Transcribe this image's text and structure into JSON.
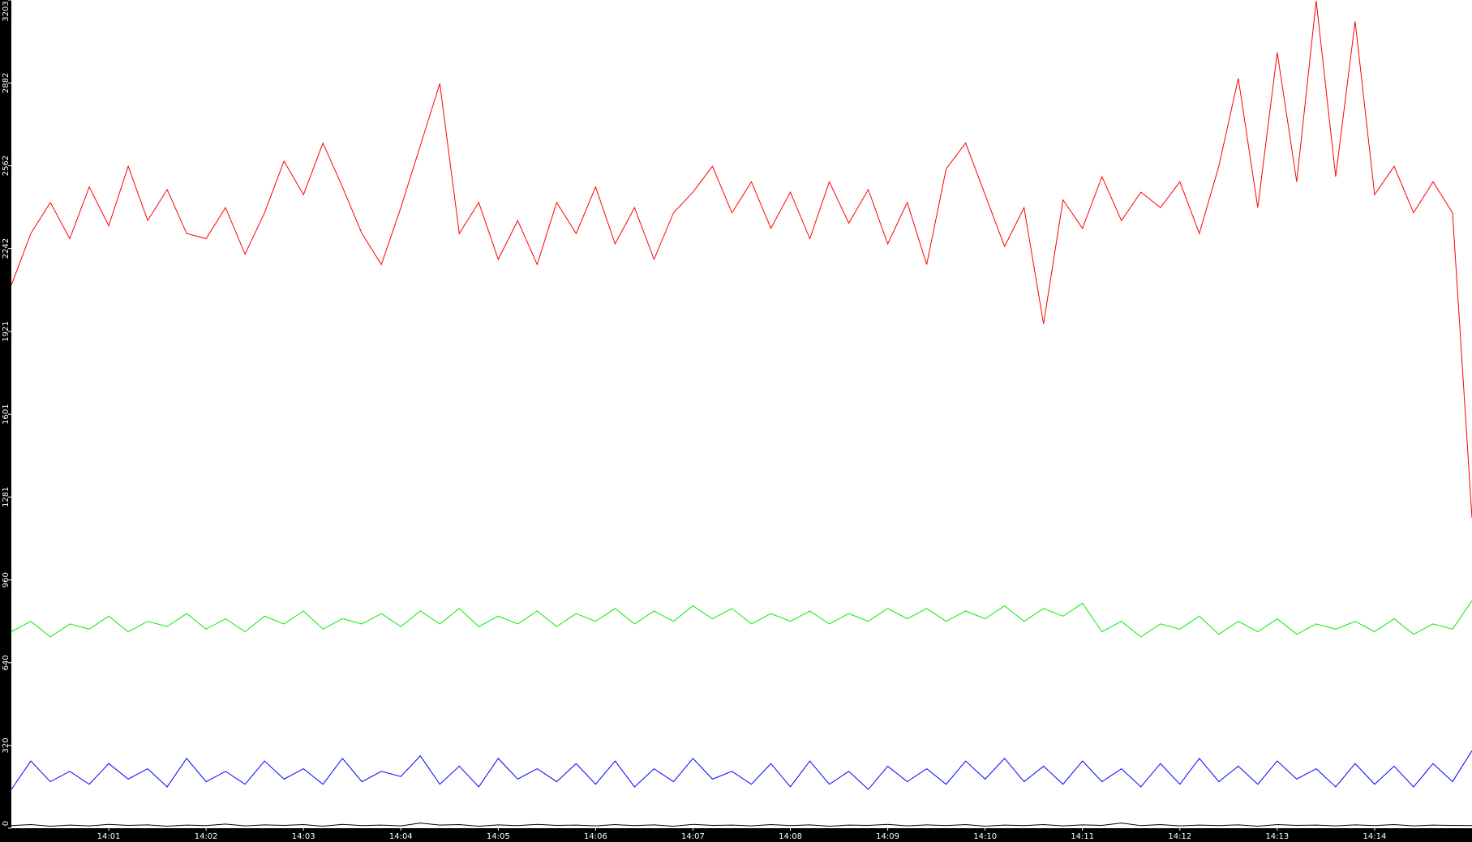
{
  "chart_data": {
    "type": "line",
    "x": [
      0,
      0.2,
      0.4,
      0.6,
      0.8,
      1,
      1.2,
      1.4,
      1.6,
      1.8,
      2,
      2.2,
      2.4,
      2.6,
      2.8,
      3,
      3.2,
      3.4,
      3.6,
      3.8,
      4,
      4.2,
      4.4,
      4.6,
      4.8,
      5,
      5.2,
      5.4,
      5.6,
      5.8,
      6,
      6.2,
      6.4,
      6.6,
      6.8,
      7,
      7.2,
      7.4,
      7.6,
      7.8,
      8,
      8.2,
      8.4,
      8.6,
      8.8,
      9,
      9.2,
      9.4,
      9.6,
      9.8,
      10,
      10.2,
      10.4,
      10.6,
      10.8,
      11,
      11.2,
      11.4,
      11.6,
      11.8,
      12,
      12.2,
      12.4,
      12.6,
      12.8,
      13,
      13.2,
      13.4,
      13.6,
      13.8,
      14,
      14.2,
      14.4,
      14.6,
      14.8,
      15
    ],
    "series": [
      {
        "color": "#ff0000",
        "values": [
          2100,
          2300,
          2420,
          2280,
          2480,
          2330,
          2560,
          2350,
          2470,
          2300,
          2280,
          2400,
          2220,
          2380,
          2580,
          2450,
          2650,
          2480,
          2300,
          2180,
          2400,
          2640,
          2880,
          2300,
          2420,
          2200,
          2350,
          2180,
          2420,
          2300,
          2480,
          2260,
          2400,
          2200,
          2380,
          2460,
          2560,
          2380,
          2500,
          2320,
          2460,
          2280,
          2500,
          2340,
          2470,
          2260,
          2420,
          2180,
          2550,
          2650,
          2450,
          2250,
          2400,
          1950,
          2430,
          2320,
          2520,
          2350,
          2460,
          2400,
          2500,
          2300,
          2560,
          2900,
          2400,
          3000,
          2500,
          3200,
          2520,
          3120,
          2450,
          2560,
          2380,
          2500,
          2380,
          1200
        ]
      },
      {
        "color": "#00ee00",
        "values": [
          760,
          800,
          740,
          790,
          770,
          820,
          760,
          800,
          780,
          830,
          770,
          810,
          760,
          820,
          790,
          840,
          770,
          810,
          790,
          830,
          780,
          840,
          790,
          850,
          780,
          820,
          790,
          840,
          780,
          830,
          800,
          850,
          790,
          840,
          800,
          860,
          810,
          850,
          790,
          830,
          800,
          840,
          790,
          830,
          800,
          850,
          810,
          850,
          800,
          840,
          810,
          860,
          800,
          850,
          820,
          870,
          760,
          800,
          740,
          790,
          770,
          820,
          750,
          800,
          760,
          810,
          750,
          790,
          770,
          800,
          760,
          810,
          750,
          790,
          770,
          880
        ]
      },
      {
        "color": "#0000ff",
        "values": [
          150,
          260,
          180,
          220,
          170,
          250,
          190,
          230,
          160,
          270,
          180,
          220,
          170,
          260,
          190,
          230,
          170,
          270,
          180,
          220,
          200,
          280,
          170,
          240,
          160,
          270,
          190,
          230,
          180,
          250,
          170,
          260,
          160,
          230,
          180,
          270,
          190,
          220,
          170,
          250,
          160,
          260,
          170,
          220,
          150,
          240,
          180,
          230,
          170,
          260,
          190,
          270,
          180,
          240,
          170,
          260,
          180,
          230,
          160,
          250,
          170,
          270,
          180,
          240,
          170,
          260,
          190,
          230,
          160,
          250,
          170,
          240,
          160,
          250,
          180,
          300
        ]
      },
      {
        "color": "#000000",
        "values": [
          10,
          14,
          8,
          12,
          9,
          15,
          11,
          13,
          8,
          12,
          10,
          16,
          9,
          13,
          11,
          14,
          8,
          15,
          10,
          12,
          9,
          20,
          12,
          14,
          8,
          13,
          10,
          15,
          11,
          12,
          9,
          14,
          10,
          13,
          8,
          15,
          11,
          12,
          9,
          14,
          10,
          13,
          8,
          12,
          11,
          15,
          9,
          13,
          10,
          14,
          8,
          12,
          10,
          14,
          9,
          13,
          11,
          20,
          10,
          14,
          9,
          12,
          10,
          13,
          8,
          14,
          11,
          12,
          9,
          13,
          10,
          14,
          9,
          12,
          11,
          10
        ]
      }
    ],
    "xlim": [
      0,
      15
    ],
    "xticks": [
      {
        "value": 1,
        "label": "14:01"
      },
      {
        "value": 2,
        "label": "14:02"
      },
      {
        "value": 3,
        "label": "14:03"
      },
      {
        "value": 4,
        "label": "14:04"
      },
      {
        "value": 5,
        "label": "14:05"
      },
      {
        "value": 6,
        "label": "14:06"
      },
      {
        "value": 7,
        "label": "14:07"
      },
      {
        "value": 8,
        "label": "14:08"
      },
      {
        "value": 9,
        "label": "14:09"
      },
      {
        "value": 10,
        "label": "14:10"
      },
      {
        "value": 11,
        "label": "14:11"
      },
      {
        "value": 12,
        "label": "14:12"
      },
      {
        "value": 13,
        "label": "14:13"
      },
      {
        "value": 14,
        "label": "14:14"
      }
    ],
    "ylim": [
      0,
      3203
    ],
    "yticks": [
      0,
      320,
      640,
      960,
      1281,
      1601,
      1921,
      2242,
      2562,
      2882,
      3203
    ]
  }
}
